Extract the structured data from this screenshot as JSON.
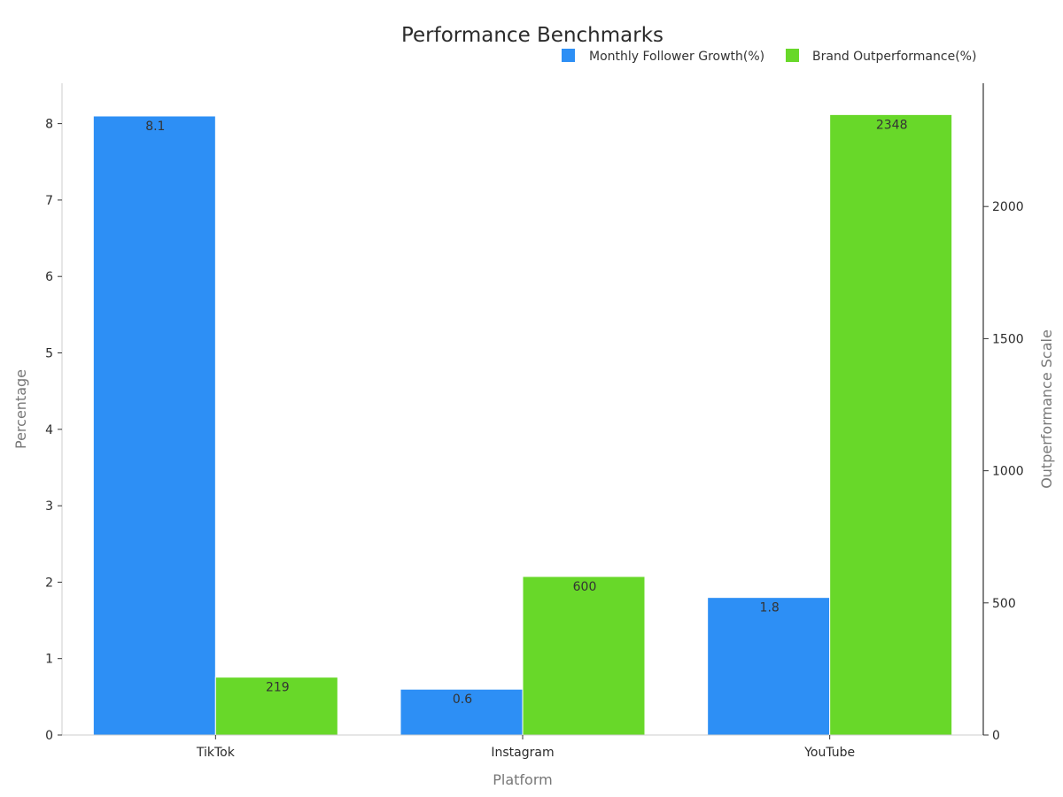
{
  "chart_data": {
    "type": "bar",
    "title": "Performance Benchmarks",
    "xlabel": "Platform",
    "ylabel": "Percentage",
    "y2label": "Outperformance Scale",
    "categories": [
      "TikTok",
      "Instagram",
      "YouTube"
    ],
    "series": [
      {
        "name": "Monthly Follower Growth(%)",
        "axis": "left",
        "color": "#2d8ff5",
        "values": [
          8.1,
          0.6,
          1.8
        ],
        "labels": [
          "8.1",
          "0.6",
          "1.8"
        ]
      },
      {
        "name": "Brand Outperformance(%)",
        "axis": "right",
        "color": "#68d829",
        "values": [
          219,
          600,
          2348
        ],
        "labels": [
          "219",
          "600",
          "2348"
        ]
      }
    ],
    "ylim": [
      0,
      8.53
    ],
    "yticks": [
      0,
      1,
      2,
      3,
      4,
      5,
      6,
      7,
      8
    ],
    "y2lim": [
      0,
      2472
    ],
    "y2ticks": [
      0,
      500,
      1000,
      1500,
      2000
    ],
    "legend_position": "top-right",
    "grid": false
  }
}
